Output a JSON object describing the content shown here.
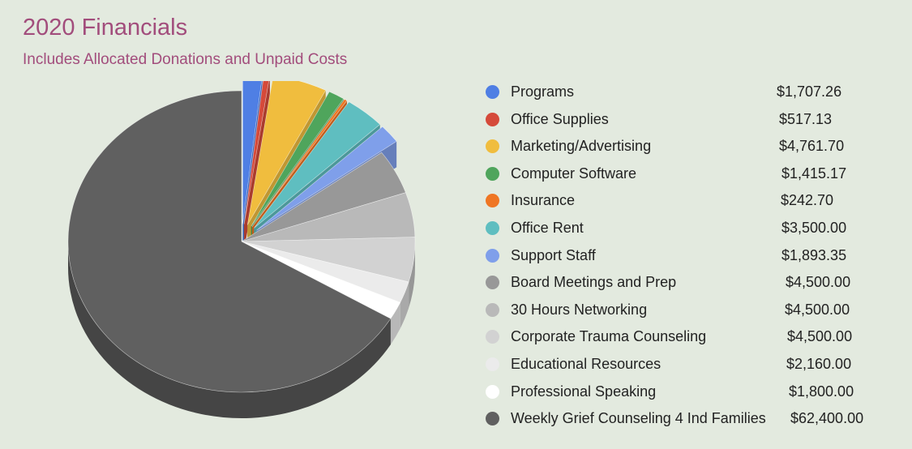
{
  "header": {
    "title": "2020 Financials",
    "subtitle": "Includes Allocated Donations and Unpaid Costs"
  },
  "chart_data": {
    "type": "pie",
    "title": "2020 Financials",
    "subtitle": "Includes Allocated Donations and Unpaid Costs",
    "style": "3d-exploded",
    "legend_position": "right",
    "slices": [
      {
        "label": "Programs",
        "value_text": "$1,707.26",
        "value": 1707.26,
        "color": "#4f7fe4",
        "exploded": true
      },
      {
        "label": "Office Supplies",
        "value_text": "$517.13",
        "value": 517.13,
        "color": "#d54a3a",
        "exploded": true
      },
      {
        "label": "Marketing/Advertising",
        "value_text": "$4,761.70",
        "value": 4761.7,
        "color": "#f0bd3e",
        "exploded": true
      },
      {
        "label": "Computer Software",
        "value_text": "$1,415.17",
        "value": 1415.17,
        "color": "#4fa55c",
        "exploded": true
      },
      {
        "label": "Insurance",
        "value_text": "$242.70",
        "value": 242.7,
        "color": "#ef7624",
        "exploded": true
      },
      {
        "label": "Office Rent",
        "value_text": "$3,500.00",
        "value": 3500.0,
        "color": "#5fbec0",
        "exploded": true
      },
      {
        "label": "Support Staff",
        "value_text": "$1,893.35",
        "value": 1893.35,
        "color": "#7f9fea",
        "exploded": true
      },
      {
        "label": "Board Meetings and Prep",
        "value_text": "$4,500.00",
        "value": 4500.0,
        "color": "#989898",
        "exploded": false
      },
      {
        "label": "30 Hours Networking",
        "value_text": "$4,500.00",
        "value": 4500.0,
        "color": "#b9b9b9",
        "exploded": false
      },
      {
        "label": "Corporate Trauma Counseling",
        "value_text": "$4,500.00",
        "value": 4500.0,
        "color": "#d2d2d2",
        "exploded": false
      },
      {
        "label": "Educational Resources",
        "value_text": "$2,160.00",
        "value": 2160.0,
        "color": "#ebebeb",
        "exploded": false
      },
      {
        "label": "Professional Speaking",
        "value_text": "$1,800.00",
        "value": 1800.0,
        "color": "#ffffff",
        "exploded": false
      },
      {
        "label": "Weekly Grief Counseling 4 Ind Families",
        "value_text": "$62,400.00",
        "value": 62400.0,
        "color": "#606060",
        "exploded": false
      }
    ]
  }
}
